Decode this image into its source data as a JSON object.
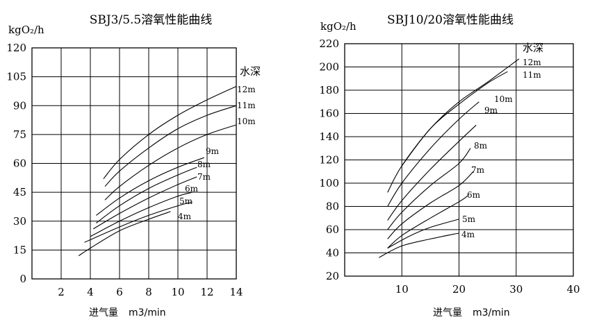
{
  "chart_data": [
    {
      "type": "line",
      "title": "SBJ3/5.5溶氧性能曲线",
      "ylabel": "kgO₂/h",
      "xlabel_text": "进气量",
      "xlabel_unit": "m3/min",
      "legend_title": "水深",
      "xlim": [
        0,
        14
      ],
      "ylim": [
        0,
        120
      ],
      "xticks": [
        2,
        4,
        6,
        8,
        10,
        12,
        14
      ],
      "yticks": [
        0,
        15,
        30,
        45,
        60,
        75,
        90,
        105,
        120
      ],
      "series": [
        {
          "name": "12m",
          "x": [
            4.9,
            6,
            8,
            10,
            12,
            14
          ],
          "y": [
            52,
            62,
            75,
            85,
            93,
            100
          ]
        },
        {
          "name": "11m",
          "x": [
            5,
            6,
            8,
            10,
            12,
            14
          ],
          "y": [
            48,
            56,
            68,
            78,
            85,
            90
          ]
        },
        {
          "name": "10m",
          "x": [
            5,
            6,
            8,
            10,
            12,
            14
          ],
          "y": [
            41,
            48,
            59,
            68,
            75,
            80
          ]
        },
        {
          "name": "9m",
          "x": [
            4.4,
            6,
            8,
            10,
            11.8
          ],
          "y": [
            33,
            42,
            51,
            58,
            63
          ]
        },
        {
          "name": "8m",
          "x": [
            4.4,
            6,
            8,
            10,
            11.3
          ],
          "y": [
            29,
            38,
            47,
            54,
            58
          ]
        },
        {
          "name": "7m",
          "x": [
            4.2,
            6,
            8,
            10,
            11.3
          ],
          "y": [
            26,
            34,
            42,
            49,
            53
          ]
        },
        {
          "name": "6m",
          "x": [
            4,
            6,
            8,
            10,
            11
          ],
          "y": [
            22,
            30,
            37,
            43,
            45
          ]
        },
        {
          "name": "5m",
          "x": [
            3.6,
            6,
            8,
            10,
            11
          ],
          "y": [
            19,
            27,
            33,
            38,
            40
          ]
        },
        {
          "name": "4m",
          "x": [
            3.2,
            4,
            6,
            8,
            9.5
          ],
          "y": [
            12,
            16,
            25,
            31,
            35
          ]
        }
      ]
    },
    {
      "type": "line",
      "title": "SBJ10/20溶氧性能曲线",
      "ylabel": "kgO₂/h",
      "xlabel_text": "进气量",
      "xlabel_unit": "m3/min",
      "legend_title": "水深",
      "xlim": [
        0,
        40
      ],
      "ylim": [
        20,
        220
      ],
      "xticks": [
        10,
        20,
        30,
        40
      ],
      "yticks": [
        20,
        40,
        60,
        80,
        100,
        120,
        140,
        160,
        180,
        200,
        220
      ],
      "series": [
        {
          "name": "12m",
          "x": [
            7.5,
            10,
            15,
            20,
            25,
            30.5
          ],
          "y": [
            92,
            115,
            147,
            170,
            187,
            207
          ]
        },
        {
          "name": "11m",
          "x": [
            10,
            15,
            20,
            25,
            28.5
          ],
          "y": [
            115,
            147,
            168,
            186,
            196
          ]
        },
        {
          "name": "10m",
          "x": [
            7.5,
            10,
            15,
            20,
            23.5
          ],
          "y": [
            80,
            100,
            130,
            155,
            170
          ]
        },
        {
          "name": "9m",
          "x": [
            7.5,
            10,
            15,
            20,
            23
          ],
          "y": [
            68,
            85,
            112,
            136,
            150
          ]
        },
        {
          "name": "8m",
          "x": [
            7.5,
            10,
            15,
            20,
            22
          ],
          "y": [
            60,
            75,
            98,
            117,
            130
          ]
        },
        {
          "name": "7m",
          "x": [
            7.5,
            10,
            15,
            20,
            22.5
          ],
          "y": [
            52,
            65,
            83,
            98,
            110
          ]
        },
        {
          "name": "6m",
          "x": [
            7.5,
            10,
            15,
            20,
            21.5
          ],
          "y": [
            44,
            55,
            70,
            84,
            89
          ]
        },
        {
          "name": "5m",
          "x": [
            7.5,
            10,
            12,
            15,
            20
          ],
          "y": [
            44,
            51,
            56,
            62,
            69
          ]
        },
        {
          "name": "4m",
          "x": [
            6,
            10,
            15,
            20
          ],
          "y": [
            36,
            46,
            52,
            57
          ]
        }
      ]
    }
  ]
}
